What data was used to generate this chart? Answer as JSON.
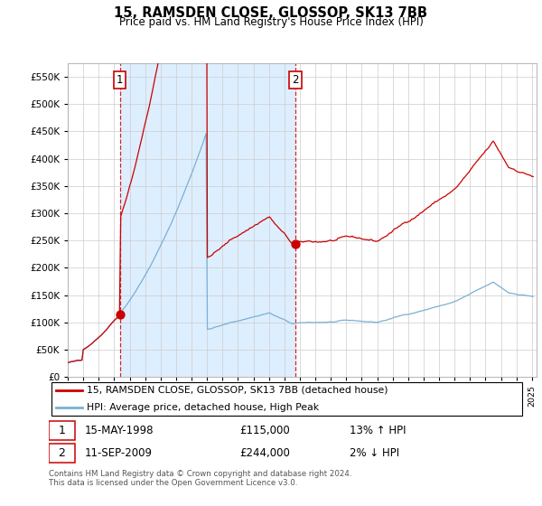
{
  "title": "15, RAMSDEN CLOSE, GLOSSOP, SK13 7BB",
  "subtitle": "Price paid vs. HM Land Registry's House Price Index (HPI)",
  "legend_line1": "15, RAMSDEN CLOSE, GLOSSOP, SK13 7BB (detached house)",
  "legend_line2": "HPI: Average price, detached house, High Peak",
  "sale1_date_str": "15-MAY-1998",
  "sale1_price_str": "£115,000",
  "sale1_hpi_str": "13% ↑ HPI",
  "sale2_date_str": "11-SEP-2009",
  "sale2_price_str": "£244,000",
  "sale2_hpi_str": "2% ↓ HPI",
  "footer": "Contains HM Land Registry data © Crown copyright and database right 2024.\nThis data is licensed under the Open Government Licence v3.0.",
  "ylim": [
    0,
    575000
  ],
  "yticks": [
    0,
    50000,
    100000,
    150000,
    200000,
    250000,
    300000,
    350000,
    400000,
    450000,
    500000,
    550000
  ],
  "ytick_labels": [
    "£0",
    "£50K",
    "£100K",
    "£150K",
    "£200K",
    "£250K",
    "£300K",
    "£350K",
    "£400K",
    "£450K",
    "£500K",
    "£550K"
  ],
  "red_color": "#cc0000",
  "blue_color": "#7ab0d4",
  "shade_color": "#ddeeff",
  "grid_color": "#cccccc",
  "sale1_year": 1998.37,
  "sale2_year": 2009.71,
  "sale1_price": 115000,
  "sale2_price": 244000,
  "xlim_start": 1995,
  "xlim_end": 2025.3
}
